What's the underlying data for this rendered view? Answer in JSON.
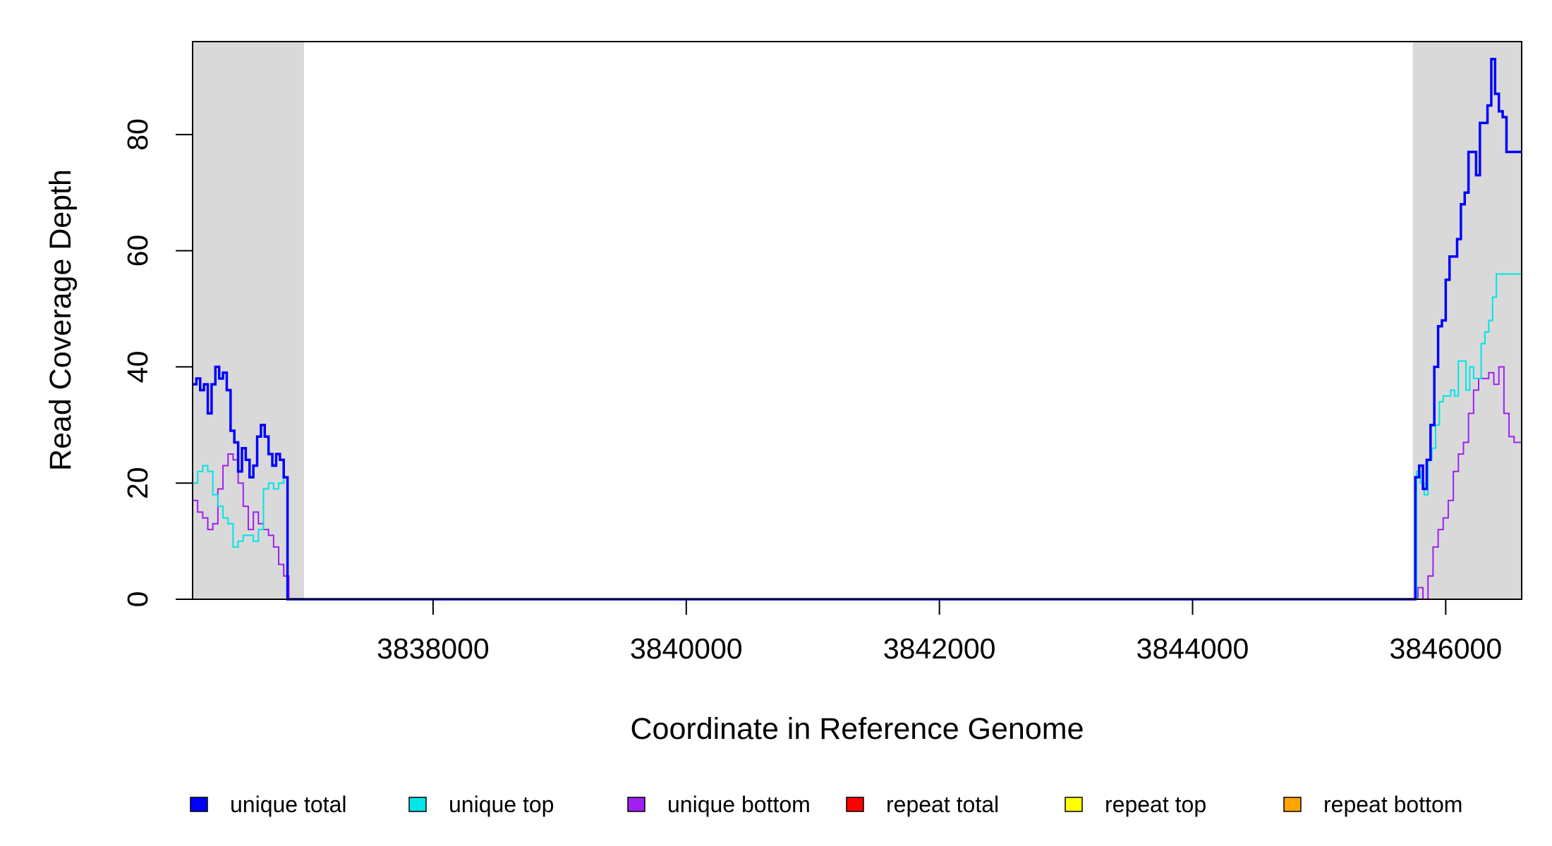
{
  "chart_data": {
    "type": "line",
    "xlabel": "Coordinate in Reference Genome",
    "ylabel": "Read Coverage Depth",
    "xlim": [
      3836100,
      3846600
    ],
    "ylim": [
      0,
      96
    ],
    "x_ticks": [
      3838000,
      3840000,
      3842000,
      3844000,
      3846000
    ],
    "y_ticks": [
      0,
      20,
      40,
      60,
      80
    ],
    "x_tick_labels": [
      "3838000",
      "3840000",
      "3842000",
      "3844000",
      "3846000"
    ],
    "y_tick_labels": [
      "0",
      "20",
      "40",
      "60",
      "80"
    ],
    "shaded_regions": [
      [
        3836100,
        3836980
      ],
      [
        3845740,
        3846600
      ]
    ],
    "shade_color": "#d9d9d9",
    "legend": {
      "placement": "bottom",
      "entries": [
        {
          "label": "unique total",
          "color": "#0000ff"
        },
        {
          "label": "unique top",
          "color": "#00e5e5"
        },
        {
          "label": "unique bottom",
          "color": "#a020f0"
        },
        {
          "label": "repeat total",
          "color": "#ff0000"
        },
        {
          "label": "repeat top",
          "color": "#ffff00"
        },
        {
          "label": "repeat bottom",
          "color": "#ffa500"
        }
      ]
    },
    "series": [
      {
        "name": "unique total",
        "color": "#0000ff",
        "x": [
          3836100,
          3836130,
          3836160,
          3836190,
          3836220,
          3836250,
          3836280,
          3836310,
          3836340,
          3836370,
          3836400,
          3836430,
          3836460,
          3836490,
          3836520,
          3836550,
          3836580,
          3836610,
          3836640,
          3836670,
          3836700,
          3836730,
          3836760,
          3836790,
          3836820,
          3836850,
          3836880,
          3836910,
          3836940,
          3836960,
          3836990,
          3837000,
          3845740,
          3845760,
          3845790,
          3845820,
          3845850,
          3845880,
          3845910,
          3845940,
          3845970,
          3846000,
          3846030,
          3846060,
          3846090,
          3846120,
          3846150,
          3846180,
          3846210,
          3846240,
          3846270,
          3846300,
          3846330,
          3846360,
          3846390,
          3846420,
          3846450,
          3846480,
          3846510,
          3846540,
          3846570,
          3846600
        ],
        "y": [
          37,
          38,
          36,
          37,
          32,
          37,
          40,
          38,
          39,
          36,
          29,
          27,
          22,
          26,
          24,
          21,
          23,
          28,
          30,
          28,
          25,
          23,
          25,
          24,
          21,
          0,
          0,
          0,
          0,
          0,
          0,
          0,
          0,
          21,
          23,
          19,
          24,
          30,
          40,
          47,
          48,
          55,
          59,
          59,
          62,
          68,
          70,
          77,
          77,
          73,
          82,
          82,
          85,
          93,
          87,
          84,
          83,
          77,
          77,
          77,
          77,
          77
        ],
        "note_x_order": "sorted"
      },
      {
        "name": "unique top",
        "color": "#00e5e5",
        "x": [
          3836100,
          3836140,
          3836180,
          3836220,
          3836260,
          3836300,
          3836340,
          3836380,
          3836420,
          3836460,
          3836500,
          3836540,
          3836580,
          3836620,
          3836660,
          3836700,
          3836740,
          3836780,
          3836820,
          3836850,
          3836880,
          3836920,
          3836960,
          3836990,
          3845740,
          3845770,
          3845800,
          3845830,
          3845860,
          3845890,
          3845920,
          3845950,
          3845980,
          3846010,
          3846040,
          3846070,
          3846100,
          3846130,
          3846160,
          3846190,
          3846220,
          3846250,
          3846280,
          3846310,
          3846340,
          3846370,
          3846400,
          3846430,
          3846460,
          3846490,
          3846520,
          3846550,
          3846580,
          3846600
        ],
        "y": [
          20,
          22,
          23,
          22,
          18,
          16,
          14,
          13,
          9,
          10,
          11,
          11,
          10,
          12,
          19,
          20,
          19,
          20,
          21,
          0,
          0,
          0,
          0,
          0,
          0,
          22,
          20,
          18,
          24,
          26,
          30,
          34,
          35,
          35,
          36,
          35,
          41,
          41,
          36,
          40,
          38,
          38,
          44,
          46,
          48,
          52,
          56,
          56,
          56,
          56,
          56,
          56,
          56,
          56
        ]
      },
      {
        "name": "unique bottom",
        "color": "#a020f0",
        "x": [
          3836100,
          3836140,
          3836180,
          3836220,
          3836260,
          3836300,
          3836340,
          3836380,
          3836420,
          3836460,
          3836500,
          3836540,
          3836580,
          3836620,
          3836660,
          3836700,
          3836740,
          3836780,
          3836820,
          3836860,
          3836900,
          3836940,
          3836980,
          3845740,
          3845780,
          3845820,
          3845860,
          3845900,
          3845940,
          3845980,
          3846020,
          3846060,
          3846100,
          3846140,
          3846180,
          3846220,
          3846260,
          3846300,
          3846340,
          3846380,
          3846420,
          3846460,
          3846500,
          3846540,
          3846570,
          3846600
        ],
        "y": [
          17,
          15,
          14,
          12,
          13,
          19,
          23,
          25,
          24,
          20,
          16,
          12,
          15,
          13,
          12,
          11,
          9,
          6,
          4,
          0,
          0,
          0,
          0,
          0,
          2,
          0,
          4,
          9,
          12,
          14,
          17,
          22,
          25,
          27,
          32,
          36,
          38,
          38,
          39,
          37,
          40,
          32,
          28,
          27,
          27,
          27
        ]
      },
      {
        "name": "repeat total",
        "color": "#ff0000",
        "x": [
          3836100,
          3846600
        ],
        "y": [
          0,
          0
        ]
      },
      {
        "name": "repeat top",
        "color": "#ffff00",
        "x": [
          3836100,
          3846600
        ],
        "y": [
          0,
          0
        ]
      },
      {
        "name": "repeat bottom",
        "color": "#ffa500",
        "x": [
          3836100,
          3846600
        ],
        "y": [
          0,
          0
        ]
      }
    ]
  }
}
